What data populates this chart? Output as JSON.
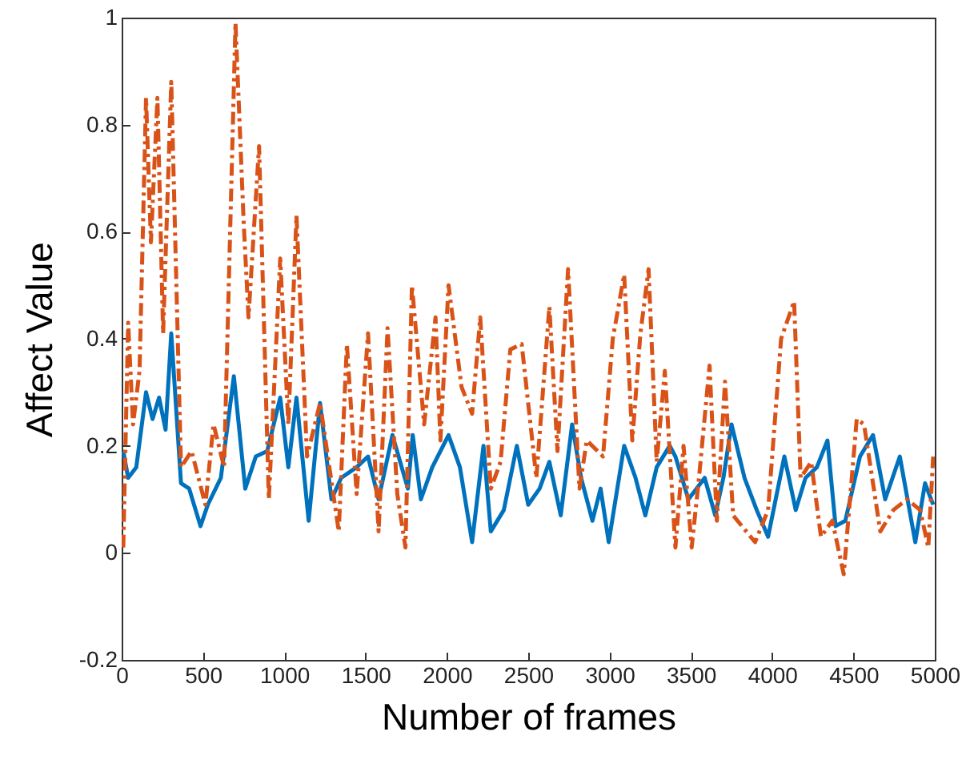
{
  "chart_data": {
    "type": "line",
    "xlabel": "Number of frames",
    "ylabel": "Affect Value",
    "xlim": [
      0,
      5000
    ],
    "xticks": [
      0,
      500,
      1000,
      1500,
      2000,
      2500,
      3000,
      3500,
      4000,
      4500,
      5000
    ],
    "ylim": [
      -0.2,
      1
    ],
    "yticks": [
      -0.2,
      0,
      0.2,
      0.4,
      0.6,
      0.8,
      1
    ],
    "grid": false,
    "series": [
      {
        "color": "#0072bd",
        "line_style": "solid",
        "x": [
          10,
          40,
          90,
          150,
          190,
          230,
          270,
          305,
          365,
          415,
          485,
          530,
          610,
          690,
          760,
          825,
          895,
          975,
          1025,
          1075,
          1150,
          1220,
          1290,
          1350,
          1445,
          1515,
          1580,
          1665,
          1760,
          1790,
          1840,
          1910,
          2010,
          2080,
          2155,
          2225,
          2270,
          2350,
          2430,
          2500,
          2570,
          2630,
          2700,
          2770,
          2825,
          2895,
          2945,
          2995,
          3090,
          3160,
          3220,
          3290,
          3370,
          3405,
          3485,
          3585,
          3650,
          3700,
          3750,
          3830,
          3905,
          3975,
          4075,
          4145,
          4205,
          4275,
          4340,
          4390,
          4450,
          4540,
          4620,
          4695,
          4785,
          4880,
          4940,
          4990
        ],
        "values": [
          0.19,
          0.14,
          0.16,
          0.3,
          0.25,
          0.29,
          0.23,
          0.41,
          0.13,
          0.12,
          0.05,
          0.09,
          0.14,
          0.33,
          0.12,
          0.18,
          0.19,
          0.29,
          0.16,
          0.29,
          0.06,
          0.28,
          0.1,
          0.14,
          0.16,
          0.18,
          0.1,
          0.22,
          0.12,
          0.22,
          0.1,
          0.16,
          0.22,
          0.16,
          0.02,
          0.2,
          0.04,
          0.08,
          0.2,
          0.09,
          0.12,
          0.17,
          0.07,
          0.24,
          0.14,
          0.06,
          0.12,
          0.02,
          0.2,
          0.14,
          0.07,
          0.16,
          0.2,
          0.18,
          0.1,
          0.14,
          0.07,
          0.14,
          0.24,
          0.14,
          0.08,
          0.03,
          0.18,
          0.08,
          0.14,
          0.16,
          0.21,
          0.05,
          0.06,
          0.18,
          0.22,
          0.1,
          0.18,
          0.02,
          0.13,
          0.09
        ]
      },
      {
        "color": "#d95319",
        "line_style": "dashed",
        "x": [
          10,
          40,
          70,
          110,
          150,
          180,
          220,
          255,
          305,
          365,
          430,
          515,
          565,
          630,
          700,
          750,
          780,
          845,
          905,
          975,
          1025,
          1075,
          1140,
          1220,
          1335,
          1385,
          1445,
          1515,
          1580,
          1635,
          1695,
          1745,
          1785,
          1860,
          1930,
          1960,
          2010,
          2090,
          2155,
          2205,
          2270,
          2330,
          2390,
          2460,
          2550,
          2630,
          2680,
          2745,
          2815,
          2860,
          2960,
          3020,
          3090,
          3140,
          3190,
          3240,
          3290,
          3340,
          3405,
          3455,
          3505,
          3550,
          3615,
          3660,
          3710,
          3760,
          3895,
          3975,
          4055,
          4135,
          4175,
          4240,
          4300,
          4370,
          4440,
          4520,
          4565,
          4665,
          4745,
          4830,
          4910,
          4960,
          4990
        ],
        "values": [
          0.01,
          0.43,
          0.24,
          0.34,
          0.85,
          0.58,
          0.85,
          0.41,
          0.88,
          0.16,
          0.19,
          0.09,
          0.24,
          0.16,
          0.99,
          0.62,
          0.44,
          0.76,
          0.1,
          0.55,
          0.24,
          0.63,
          0.18,
          0.28,
          0.04,
          0.39,
          0.11,
          0.41,
          0.04,
          0.42,
          0.11,
          0.01,
          0.5,
          0.24,
          0.44,
          0.21,
          0.5,
          0.31,
          0.26,
          0.44,
          0.12,
          0.17,
          0.38,
          0.39,
          0.14,
          0.46,
          0.19,
          0.53,
          0.12,
          0.21,
          0.18,
          0.4,
          0.52,
          0.21,
          0.41,
          0.53,
          0.17,
          0.34,
          0.01,
          0.2,
          0.01,
          0.14,
          0.35,
          0.06,
          0.32,
          0.07,
          0.02,
          0.08,
          0.4,
          0.47,
          0.14,
          0.17,
          0.03,
          0.06,
          -0.04,
          0.25,
          0.24,
          0.04,
          0.08,
          0.1,
          0.08,
          0.01,
          0.18
        ]
      }
    ]
  }
}
